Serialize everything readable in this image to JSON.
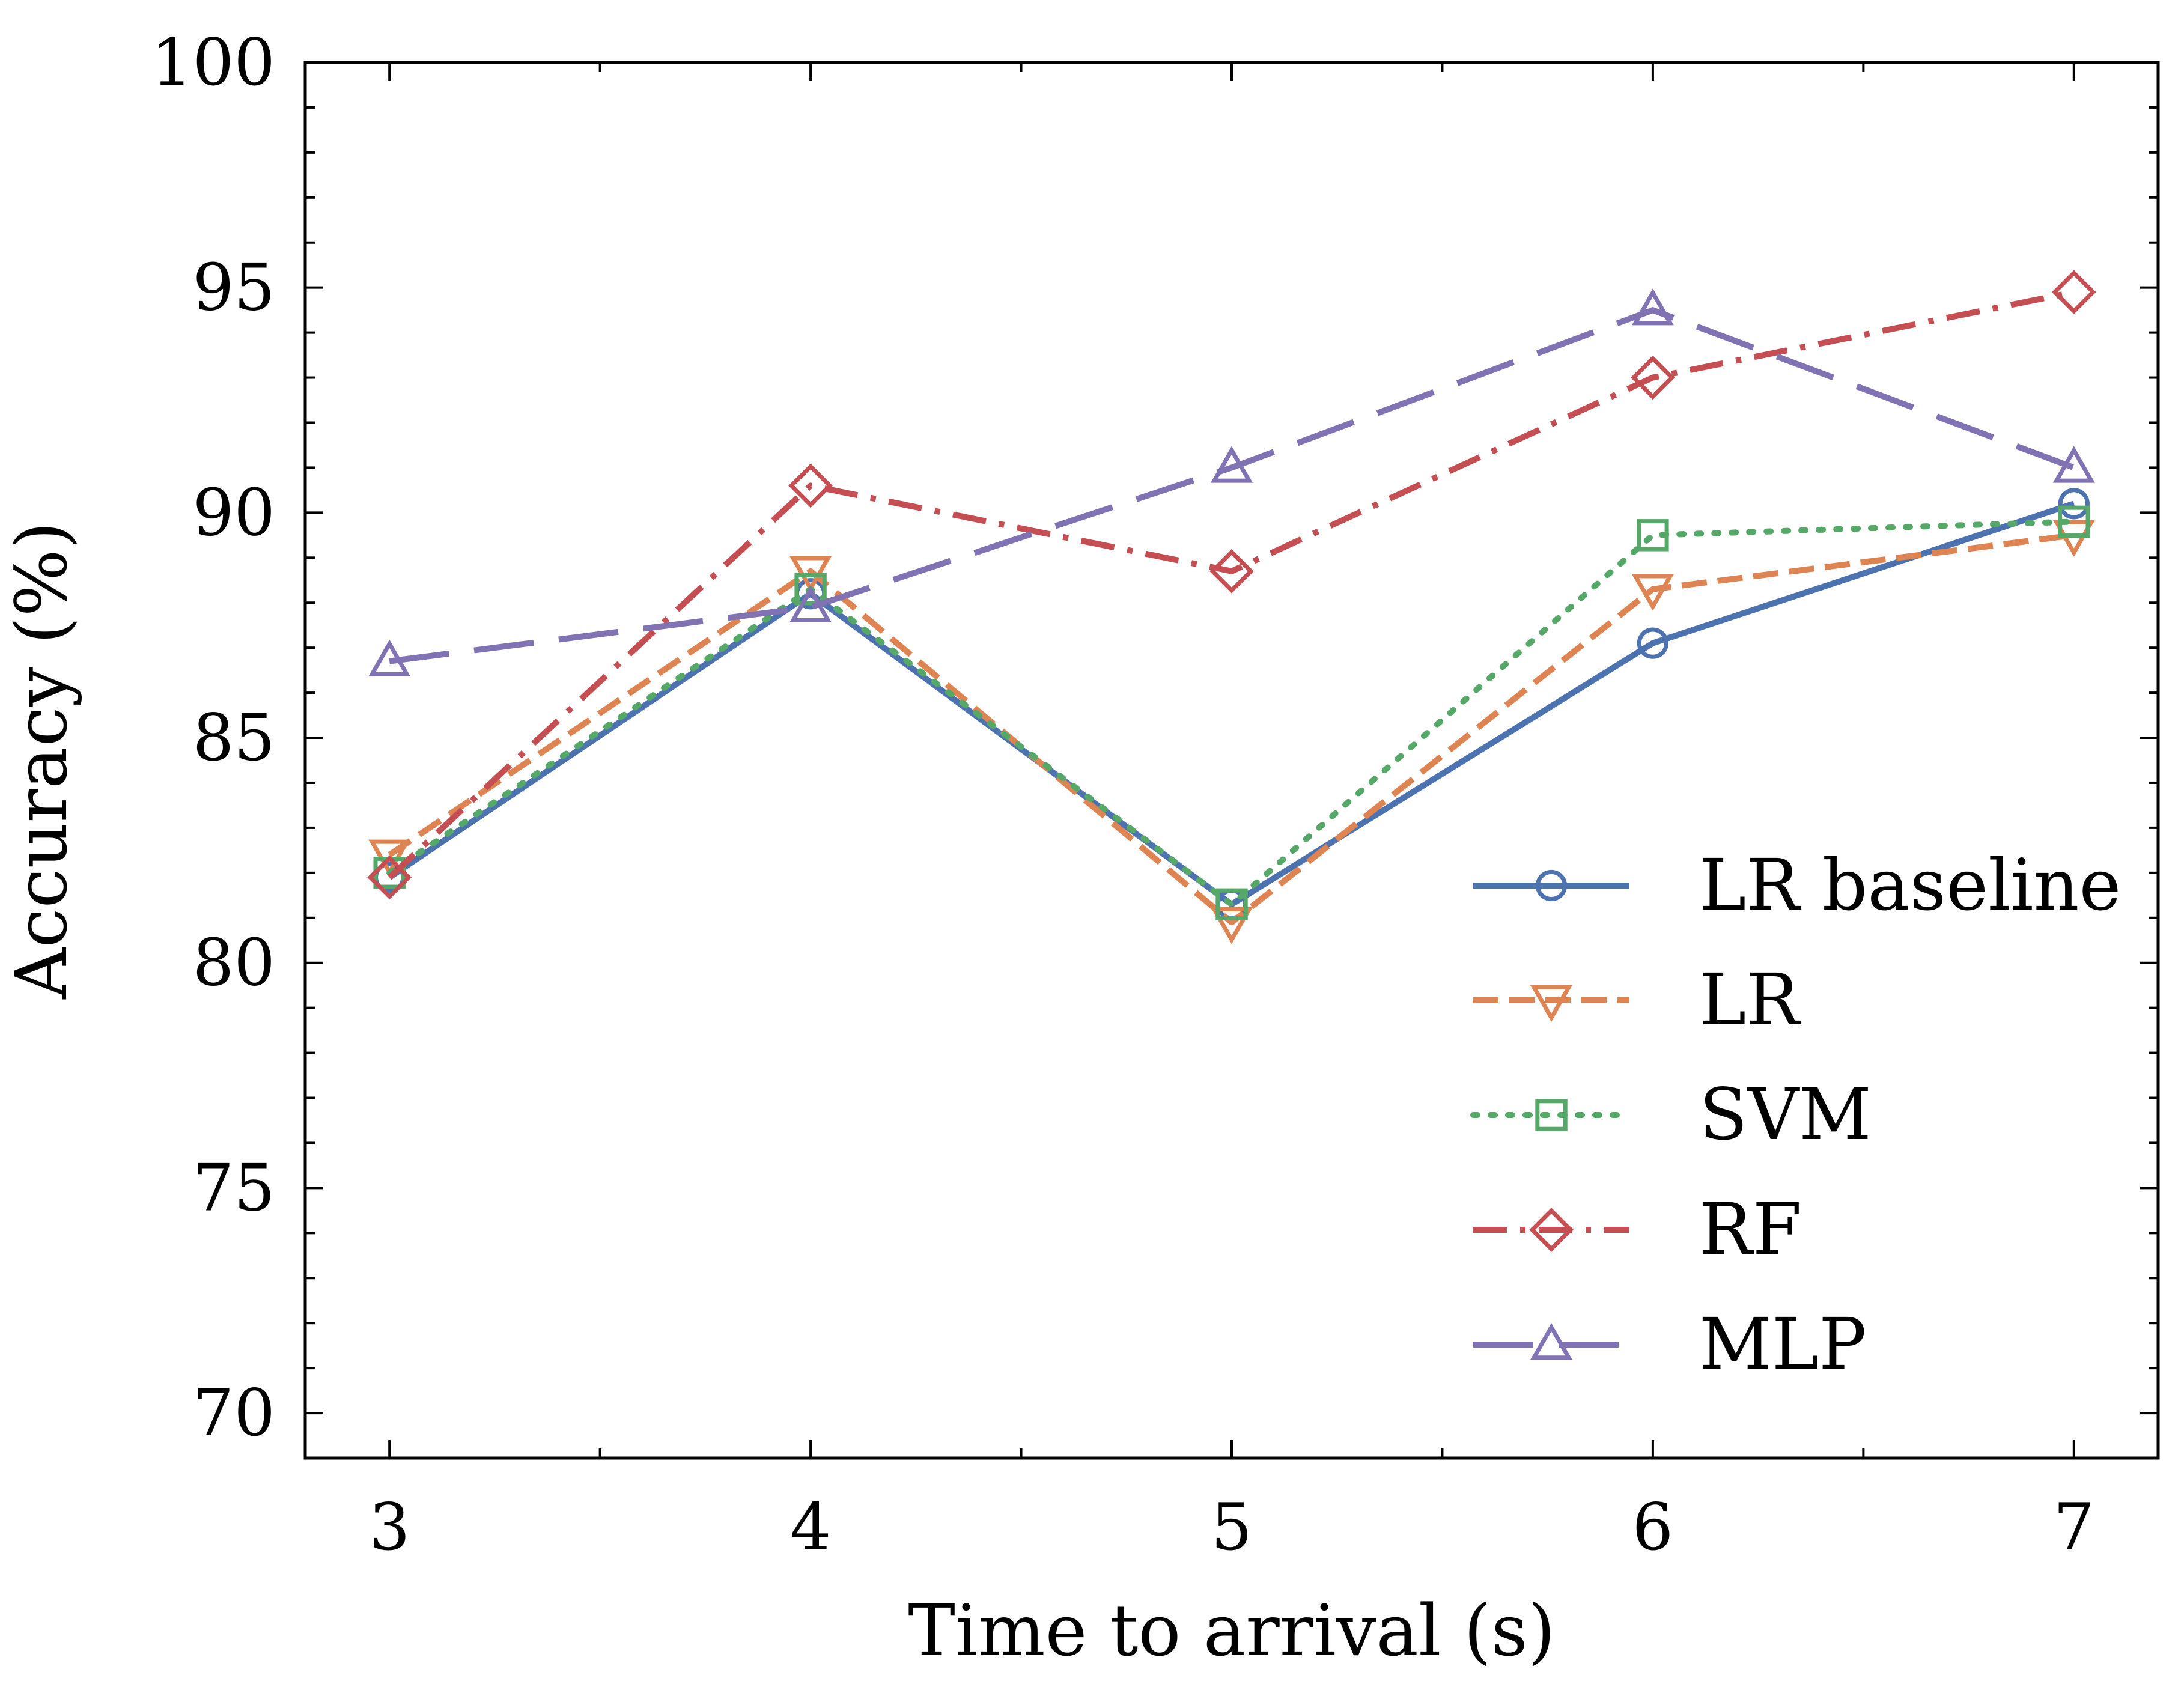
{
  "chart_data": {
    "type": "line",
    "title": "",
    "xlabel": "Time to arrival (s)",
    "ylabel": "Accuracy (%)",
    "x": [
      3,
      4,
      5,
      6,
      7
    ],
    "xlim": [
      2.8,
      7.2
    ],
    "ylim": [
      69,
      100
    ],
    "xticks": [
      3,
      4,
      5,
      6,
      7
    ],
    "yticks": [
      70,
      75,
      80,
      85,
      90,
      95,
      100
    ],
    "x_minor_step": 0.5,
    "y_minor_step": 1,
    "tick_direction": "in",
    "grid": false,
    "legend_position": "lower-right",
    "series": [
      {
        "name": "LR baseline",
        "values": [
          81.9,
          88.2,
          81.3,
          87.1,
          90.2
        ],
        "color": "#4c72b0",
        "linestyle": "solid",
        "marker": "circle"
      },
      {
        "name": "LR",
        "values": [
          82.4,
          88.7,
          80.9,
          88.3,
          89.5
        ],
        "color": "#dd8452",
        "linestyle": "dashed",
        "marker": "triangle-down"
      },
      {
        "name": "SVM",
        "values": [
          82.0,
          88.3,
          81.3,
          89.5,
          89.8
        ],
        "color": "#55a868",
        "linestyle": "dotted",
        "marker": "square"
      },
      {
        "name": "RF",
        "values": [
          81.9,
          90.6,
          88.7,
          93.0,
          94.9
        ],
        "color": "#c44e52",
        "linestyle": "dashdot",
        "marker": "diamond"
      },
      {
        "name": "MLP",
        "values": [
          86.7,
          87.9,
          91.0,
          94.5,
          91.0
        ],
        "color": "#8172b3",
        "linestyle": "longdash",
        "marker": "triangle-up"
      }
    ]
  }
}
